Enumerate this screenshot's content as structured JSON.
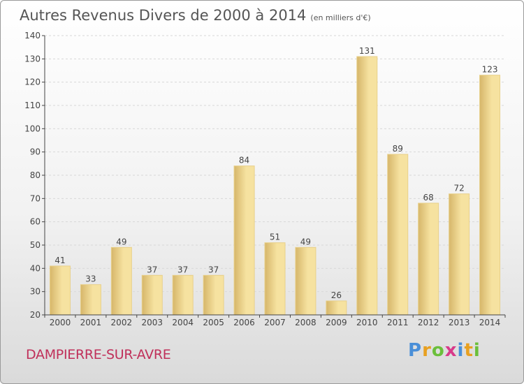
{
  "header": {
    "title": "Autres Revenus Divers de 2000 à 2014",
    "subtitle": "(en milliers d'€)"
  },
  "footer": {
    "commune": "DAMPIERRE-SUR-AVRE",
    "logo_text": "Proxiti"
  },
  "colors": {
    "bar_light": "#f6e2a0",
    "bar_dark": "#d6b66a",
    "bar_border": "#e8d08a",
    "axis": "#444444",
    "grid": "#d8d8d8",
    "text": "#444444"
  },
  "chart_data": {
    "type": "bar",
    "title": "Autres Revenus Divers de 2000 à 2014",
    "subtitle": "(en milliers d'€)",
    "categories": [
      "2000",
      "2001",
      "2002",
      "2003",
      "2004",
      "2005",
      "2006",
      "2007",
      "2008",
      "2009",
      "2010",
      "2011",
      "2012",
      "2013",
      "2014"
    ],
    "values": [
      41,
      33,
      49,
      37,
      37,
      37,
      84,
      51,
      49,
      26,
      131,
      89,
      68,
      72,
      123
    ],
    "ylim": [
      20,
      140
    ],
    "yticks": [
      20,
      30,
      40,
      50,
      60,
      70,
      80,
      90,
      100,
      110,
      120,
      130,
      140
    ],
    "grid": true,
    "legend": false,
    "data_labels": true
  }
}
